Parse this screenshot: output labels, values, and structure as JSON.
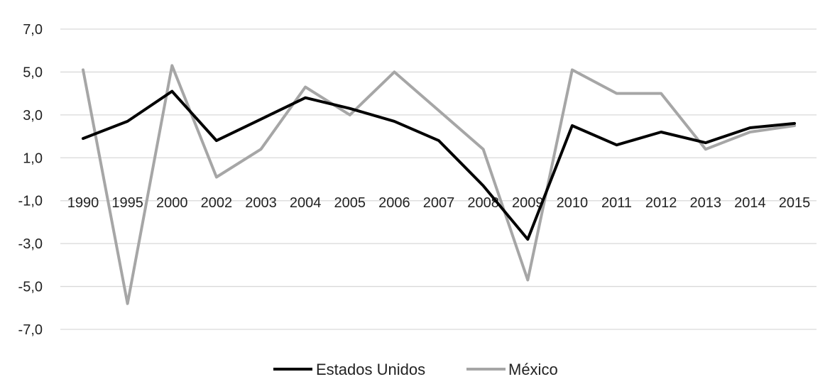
{
  "chart_data": {
    "type": "line",
    "title": "",
    "xlabel": "",
    "ylabel": "",
    "categories": [
      "1990",
      "1995",
      "2000",
      "2002",
      "2003",
      "2004",
      "2005",
      "2006",
      "2007",
      "2008",
      "2009",
      "2010",
      "2011",
      "2012",
      "2013",
      "2014",
      "2015"
    ],
    "ylim": [
      -7,
      7
    ],
    "yticks": [
      7,
      5,
      3,
      1,
      -1,
      -3,
      -5,
      -7
    ],
    "ytick_labels": [
      "7,0",
      "5,0",
      "3,0",
      "1,0",
      "-1,0",
      "-3,0",
      "-5,0",
      "-7,0"
    ],
    "grid": true,
    "legend_position": "bottom",
    "series": [
      {
        "name": "Estados Unidos",
        "color": "#000000",
        "values": [
          1.9,
          2.7,
          4.1,
          1.8,
          2.8,
          3.8,
          3.3,
          2.7,
          1.8,
          -0.3,
          -2.8,
          2.5,
          1.6,
          2.2,
          1.7,
          2.4,
          2.6
        ]
      },
      {
        "name": "México",
        "color": "#a6a6a6",
        "values": [
          5.1,
          -5.8,
          5.3,
          0.1,
          1.4,
          4.3,
          3.0,
          5.0,
          3.2,
          1.4,
          -4.7,
          5.1,
          4.0,
          4.0,
          1.4,
          2.2,
          2.5
        ]
      }
    ]
  }
}
